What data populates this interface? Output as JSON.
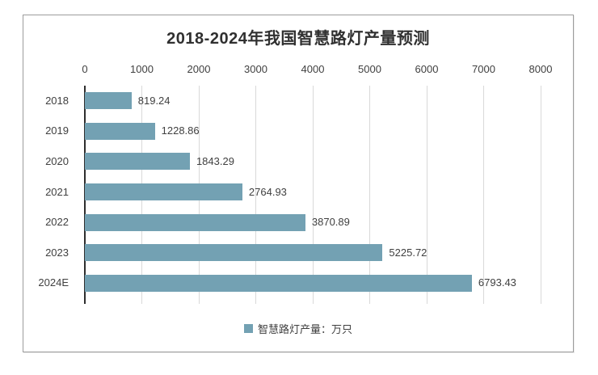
{
  "chart_data": {
    "type": "bar",
    "orientation": "horizontal",
    "title": "2018-2024年我国智慧路灯产量预测",
    "categories": [
      "2018",
      "2019",
      "2020",
      "2021",
      "2022",
      "2023",
      "2024E"
    ],
    "values": [
      819.24,
      1228.86,
      1843.29,
      2764.93,
      3870.89,
      5225.72,
      6793.43
    ],
    "value_labels": [
      "819.24",
      "1228.86",
      "1843.29",
      "2764.93",
      "3870.89",
      "5225.72",
      "6793.43"
    ],
    "x_ticks": [
      "0",
      "1000",
      "2000",
      "3000",
      "4000",
      "5000",
      "6000",
      "7000",
      "8000"
    ],
    "xlim": [
      0,
      8000
    ],
    "xlabel": "",
    "ylabel": "",
    "grid": true,
    "legend_position": "bottom",
    "legend": {
      "label": "智慧路灯产量：万只"
    },
    "colors": {
      "bar": "#73A1B3",
      "gridline": "#d9d9d9",
      "axis_line": "#2e2e2e",
      "text": "#404040",
      "title_text": "#303030",
      "frame_border": "#9c9c9c"
    }
  }
}
